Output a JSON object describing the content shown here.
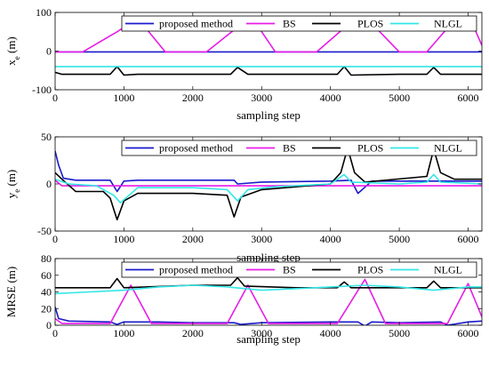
{
  "chart_data": [
    {
      "type": "line",
      "ylabel": "x_e (m)",
      "ylabel_main": "x",
      "ylabel_sub": "e",
      "ylabel_unit": " (m)",
      "xlabel": "sampling step",
      "xlim": [
        0,
        6200
      ],
      "ylim": [
        -100,
        100
      ],
      "xticks": [
        0,
        1000,
        2000,
        3000,
        4000,
        5000,
        6000
      ],
      "yticks": [
        -100,
        0,
        100
      ],
      "grid": false,
      "legend": "top-right",
      "series": [
        {
          "name": "proposed method",
          "color": "#1a1acc",
          "x": [
            0,
            300,
            1000,
            2000,
            3000,
            4000,
            5000,
            6200
          ],
          "y": [
            -2,
            -2,
            -2,
            -2,
            -2,
            -2,
            -2,
            -2
          ]
        },
        {
          "name": "BS",
          "color": "#e81ce8",
          "x": [
            0,
            150,
            400,
            900,
            1200,
            1600,
            2200,
            2600,
            2850,
            3200,
            3800,
            4200,
            4500,
            5000,
            5400,
            5800,
            6100,
            6200
          ],
          "y": [
            -2,
            -2,
            -2,
            50,
            85,
            -2,
            -2,
            55,
            90,
            -2,
            -2,
            60,
            90,
            -2,
            -2,
            80,
            55,
            15
          ]
        },
        {
          "name": "PLOS",
          "color": "#000000",
          "x": [
            0,
            100,
            200,
            800,
            900,
            1000,
            1200,
            2000,
            2550,
            2650,
            2800,
            3500,
            4100,
            4200,
            4300,
            5000,
            5400,
            5500,
            5600,
            6200
          ],
          "y": [
            -55,
            -60,
            -60,
            -60,
            -40,
            -62,
            -60,
            -60,
            -60,
            -42,
            -60,
            -60,
            -60,
            -40,
            -62,
            -60,
            -60,
            -42,
            -60,
            -60
          ]
        },
        {
          "name": "NLGL",
          "color": "#33e6e6",
          "x": [
            0,
            1000,
            2000,
            3000,
            4000,
            5000,
            6200
          ],
          "y": [
            -40,
            -40,
            -40,
            -40,
            -40,
            -40,
            -40
          ]
        }
      ]
    },
    {
      "type": "line",
      "ylabel": "y_e (m)",
      "ylabel_main": "y",
      "ylabel_sub": "e",
      "ylabel_unit": " (m)",
      "xlabel": "sampling step",
      "xlim": [
        0,
        6200
      ],
      "ylim": [
        -50,
        50
      ],
      "xticks": [
        0,
        1000,
        2000,
        3000,
        4000,
        5000,
        6000
      ],
      "yticks": [
        -50,
        0,
        50
      ],
      "grid": false,
      "legend": "top-right",
      "series": [
        {
          "name": "proposed method",
          "color": "#1a1acc",
          "x": [
            0,
            50,
            120,
            300,
            800,
            900,
            1000,
            1200,
            1500,
            2000,
            2600,
            2650,
            3000,
            4000,
            4300,
            4400,
            4600,
            5000,
            5500,
            6200
          ],
          "y": [
            35,
            20,
            6,
            4,
            4,
            -8,
            3,
            4,
            4,
            4,
            4,
            0,
            2,
            3,
            4,
            -10,
            3,
            3,
            3,
            3
          ]
        },
        {
          "name": "BS",
          "color": "#e81ce8",
          "x": [
            0,
            100,
            400,
            1000,
            2000,
            3000,
            4000,
            5000,
            6200
          ],
          "y": [
            4,
            -2,
            -2,
            -2,
            -2,
            -2,
            -2,
            -2,
            -2
          ]
        },
        {
          "name": "PLOS",
          "color": "#000000",
          "x": [
            0,
            100,
            300,
            700,
            800,
            900,
            1000,
            1200,
            2000,
            2500,
            2600,
            2700,
            3000,
            4000,
            4150,
            4250,
            4350,
            4500,
            5400,
            5500,
            5600,
            5800,
            6200
          ],
          "y": [
            12,
            5,
            -8,
            -8,
            -15,
            -38,
            -18,
            -10,
            -10,
            -12,
            -35,
            -14,
            -6,
            0,
            12,
            38,
            12,
            2,
            8,
            37,
            12,
            5,
            5
          ]
        },
        {
          "name": "NLGL",
          "color": "#33e6e6",
          "x": [
            0,
            200,
            600,
            850,
            950,
            1200,
            2000,
            2500,
            2650,
            2800,
            3200,
            4000,
            4200,
            4300,
            5000,
            5400,
            5500,
            5600,
            6200
          ],
          "y": [
            5,
            0,
            -2,
            -12,
            -20,
            -4,
            -4,
            -6,
            -18,
            -6,
            -3,
            0,
            10,
            2,
            0,
            2,
            10,
            2,
            0
          ]
        }
      ]
    },
    {
      "type": "line",
      "ylabel": "MRSE (m)",
      "xlabel": "sampling step",
      "xlim": [
        0,
        6200
      ],
      "ylim": [
        0,
        80
      ],
      "xticks": [
        0,
        1000,
        2000,
        3000,
        4000,
        5000,
        6000
      ],
      "yticks": [
        0,
        20,
        40,
        60,
        80
      ],
      "grid": false,
      "legend": "top-right",
      "series": [
        {
          "name": "proposed method",
          "color": "#1a1acc",
          "x": [
            0,
            50,
            200,
            800,
            900,
            1000,
            1500,
            2000,
            2600,
            2700,
            3000,
            4000,
            4400,
            4500,
            4600,
            5000,
            5600,
            5700,
            6000,
            6200
          ],
          "y": [
            22,
            8,
            5,
            4,
            1,
            4,
            4,
            3,
            3,
            1,
            3,
            4,
            4,
            -1,
            4,
            3,
            4,
            0,
            4,
            5
          ]
        },
        {
          "name": "BS",
          "color": "#e81ce8",
          "x": [
            0,
            100,
            300,
            800,
            1100,
            1400,
            2000,
            2500,
            2800,
            3100,
            3500,
            4100,
            4500,
            4800,
            5200,
            5700,
            6000,
            6200
          ],
          "y": [
            8,
            2,
            2,
            2,
            48,
            2,
            2,
            2,
            48,
            2,
            2,
            2,
            55,
            2,
            2,
            2,
            50,
            10
          ]
        },
        {
          "name": "PLOS",
          "color": "#000000",
          "x": [
            0,
            800,
            900,
            1000,
            2000,
            2550,
            2650,
            2750,
            3500,
            4100,
            4200,
            4300,
            5000,
            5400,
            5500,
            5600,
            6200
          ],
          "y": [
            45,
            45,
            56,
            45,
            48,
            48,
            57,
            47,
            45,
            45,
            52,
            45,
            45,
            45,
            53,
            45,
            45
          ]
        },
        {
          "name": "NLGL",
          "color": "#33e6e6",
          "x": [
            0,
            500,
            1000,
            1500,
            2000,
            2500,
            3000,
            3500,
            4000,
            4500,
            5000,
            5500,
            6000,
            6200
          ],
          "y": [
            38,
            40,
            42,
            46,
            48,
            46,
            42,
            44,
            46,
            48,
            46,
            42,
            46,
            46
          ]
        }
      ]
    }
  ]
}
